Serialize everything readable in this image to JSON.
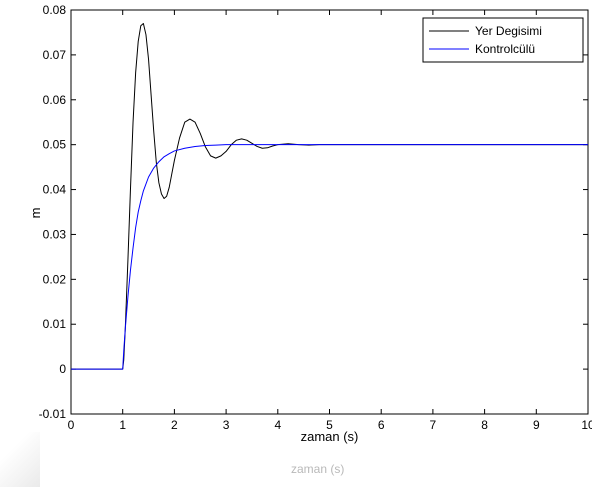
{
  "chart_data": {
    "type": "line",
    "title": "",
    "xlabel": "zaman (s)",
    "ylabel": "m",
    "xlim": [
      0,
      10
    ],
    "ylim": [
      -0.01,
      0.08
    ],
    "grid": false,
    "legend_position": "top-right",
    "x_ticks": [
      "0",
      "1",
      "2",
      "3",
      "4",
      "5",
      "6",
      "7",
      "8",
      "9",
      "10"
    ],
    "y_ticks": [
      "-0.01",
      "0",
      "0.01",
      "0.02",
      "0.03",
      "0.04",
      "0.05",
      "0.06",
      "0.07",
      "0.08"
    ],
    "series": [
      {
        "name": "Yer Degisimi",
        "color": "#000000",
        "x": [
          0,
          1.0,
          1.02,
          1.05,
          1.1,
          1.15,
          1.2,
          1.25,
          1.3,
          1.35,
          1.4,
          1.45,
          1.5,
          1.55,
          1.6,
          1.65,
          1.7,
          1.75,
          1.8,
          1.85,
          1.9,
          1.95,
          2.0,
          2.1,
          2.2,
          2.3,
          2.4,
          2.5,
          2.6,
          2.7,
          2.8,
          2.9,
          3.0,
          3.1,
          3.2,
          3.3,
          3.4,
          3.5,
          3.6,
          3.7,
          3.8,
          3.9,
          4.0,
          4.2,
          4.4,
          4.6,
          4.8,
          5.0,
          5.5,
          6.0,
          7.0,
          8.0,
          9.0,
          10.0
        ],
        "y": [
          0,
          0,
          0.002,
          0.009,
          0.024,
          0.04,
          0.055,
          0.066,
          0.073,
          0.0765,
          0.077,
          0.0745,
          0.069,
          0.061,
          0.053,
          0.046,
          0.0415,
          0.039,
          0.038,
          0.0385,
          0.0405,
          0.0435,
          0.0465,
          0.0515,
          0.055,
          0.0557,
          0.055,
          0.0525,
          0.0495,
          0.0475,
          0.047,
          0.0475,
          0.0485,
          0.05,
          0.051,
          0.0513,
          0.051,
          0.0503,
          0.0496,
          0.0492,
          0.0493,
          0.0497,
          0.05,
          0.0502,
          0.05,
          0.0499,
          0.05,
          0.05,
          0.05,
          0.05,
          0.05,
          0.05,
          0.05,
          0.05
        ]
      },
      {
        "name": "Kontrolcülü",
        "color": "#0000ff",
        "x": [
          0,
          1.0,
          1.02,
          1.05,
          1.1,
          1.15,
          1.2,
          1.25,
          1.3,
          1.35,
          1.4,
          1.5,
          1.6,
          1.7,
          1.8,
          1.9,
          2.0,
          2.2,
          2.4,
          2.6,
          2.8,
          3.0,
          3.5,
          4.0,
          5.0,
          6.0,
          7.0,
          8.0,
          9.0,
          10.0
        ],
        "y": [
          0,
          0,
          0.004,
          0.009,
          0.016,
          0.022,
          0.027,
          0.0315,
          0.035,
          0.0375,
          0.0397,
          0.0428,
          0.0448,
          0.0462,
          0.0473,
          0.048,
          0.0486,
          0.0492,
          0.0496,
          0.0498,
          0.0499,
          0.05,
          0.05,
          0.05,
          0.05,
          0.05,
          0.05,
          0.05,
          0.05,
          0.05
        ]
      }
    ]
  },
  "caption_ghost": "zaman (s)"
}
